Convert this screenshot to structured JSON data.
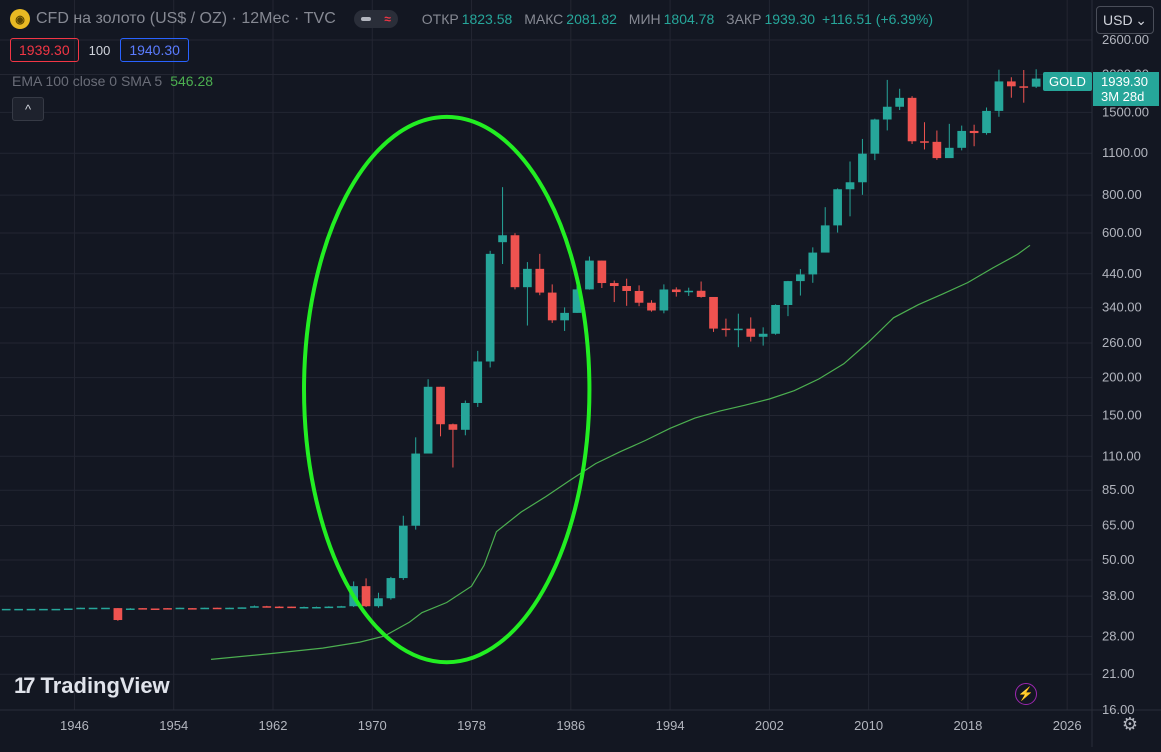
{
  "header": {
    "logo_glyph": "◉",
    "symbol_title": "CFD на золото (US$ / OZ) · 12Мес · TVC",
    "pill_icon": "wave-icon",
    "ohlc": [
      {
        "label": "ОТКР",
        "value": "1823.58"
      },
      {
        "label": "МАКС",
        "value": "2081.82"
      },
      {
        "label": "МИН",
        "value": "1804.78"
      },
      {
        "label": "ЗАКР",
        "value": "1939.30"
      },
      {
        "label": "",
        "value": "+116.51 (+6.39%)"
      }
    ]
  },
  "trade": {
    "sell": "1939.30",
    "spread": "100",
    "buy": "1940.30"
  },
  "indicator": {
    "label": "EMA 100 close 0 SMA 5",
    "value": "546.28"
  },
  "collapse_glyph": "^",
  "currency": {
    "label": "USD",
    "chevron": "⌄"
  },
  "branding": {
    "mark": "17",
    "name": "TradingView"
  },
  "bolt_glyph": "⚡",
  "gear_glyph": "⚙",
  "price_tag": {
    "symbol": "GOLD",
    "price": "1939.30",
    "countdown": "3M 28d"
  },
  "colors": {
    "up": "#26a69a",
    "down": "#ef5350",
    "ema": "#4caf50",
    "ellipse": "#22ee22",
    "grid": "#232632",
    "bg": "#131722"
  },
  "chart_data": {
    "type": "candlestick",
    "scale": "log",
    "ylim": [
      16,
      2600
    ],
    "xlim": [
      1940,
      2028
    ],
    "x_ticks": [
      "1946",
      "1954",
      "1962",
      "1970",
      "1978",
      "1986",
      "1994",
      "2002",
      "2010",
      "2018",
      "2026"
    ],
    "y_ticks": [
      "2600.00",
      "2000.00",
      "1500.00",
      "1100.00",
      "800.00",
      "600.00",
      "440.00",
      "340.00",
      "260.00",
      "200.00",
      "150.00",
      "110.00",
      "85.00",
      "65.00",
      "50.00",
      "38.00",
      "28.00",
      "21.00",
      "16.00"
    ],
    "candles": [
      {
        "year": 1940,
        "open": 34.5,
        "high": 34.5,
        "low": 34.5,
        "close": 34.5
      },
      {
        "year": 1941,
        "open": 34.5,
        "high": 34.5,
        "low": 34.5,
        "close": 34.5
      },
      {
        "year": 1942,
        "open": 34.5,
        "high": 34.5,
        "low": 34.5,
        "close": 34.5
      },
      {
        "year": 1943,
        "open": 34.5,
        "high": 34.5,
        "low": 34.5,
        "close": 34.5
      },
      {
        "year": 1944,
        "open": 34.5,
        "high": 34.5,
        "low": 34.5,
        "close": 34.5
      },
      {
        "year": 1945,
        "open": 34.6,
        "high": 34.6,
        "low": 34.6,
        "close": 34.6
      },
      {
        "year": 1946,
        "open": 34.6,
        "high": 34.8,
        "low": 34.6,
        "close": 34.8
      },
      {
        "year": 1947,
        "open": 34.8,
        "high": 34.8,
        "low": 34.8,
        "close": 34.8
      },
      {
        "year": 1948,
        "open": 34.8,
        "high": 34.8,
        "low": 34.8,
        "close": 34.8
      },
      {
        "year": 1949,
        "open": 34.7,
        "high": 34.7,
        "low": 31.5,
        "close": 31.7
      },
      {
        "year": 1950,
        "open": 34.6,
        "high": 34.7,
        "low": 34.5,
        "close": 34.6
      },
      {
        "year": 1951,
        "open": 34.7,
        "high": 34.7,
        "low": 34.5,
        "close": 34.6
      },
      {
        "year": 1952,
        "open": 34.6,
        "high": 34.6,
        "low": 34.5,
        "close": 34.5
      },
      {
        "year": 1953,
        "open": 34.7,
        "high": 34.7,
        "low": 34.5,
        "close": 34.6
      },
      {
        "year": 1954,
        "open": 34.6,
        "high": 34.8,
        "low": 34.6,
        "close": 34.8
      },
      {
        "year": 1955,
        "open": 34.7,
        "high": 34.7,
        "low": 34.6,
        "close": 34.6
      },
      {
        "year": 1956,
        "open": 34.7,
        "high": 34.8,
        "low": 34.7,
        "close": 34.8
      },
      {
        "year": 1957,
        "open": 34.8,
        "high": 34.8,
        "low": 34.7,
        "close": 34.7
      },
      {
        "year": 1958,
        "open": 34.7,
        "high": 34.8,
        "low": 34.7,
        "close": 34.8
      },
      {
        "year": 1959,
        "open": 34.8,
        "high": 34.9,
        "low": 34.8,
        "close": 34.9
      },
      {
        "year": 1960,
        "open": 34.9,
        "high": 35.4,
        "low": 34.9,
        "close": 35.2
      },
      {
        "year": 1961,
        "open": 35.2,
        "high": 35.3,
        "low": 34.9,
        "close": 35.0
      },
      {
        "year": 1962,
        "open": 35.1,
        "high": 35.2,
        "low": 34.9,
        "close": 35.0
      },
      {
        "year": 1963,
        "open": 35.1,
        "high": 35.1,
        "low": 34.8,
        "close": 34.9
      },
      {
        "year": 1964,
        "open": 35.0,
        "high": 35.1,
        "low": 34.9,
        "close": 35.0
      },
      {
        "year": 1965,
        "open": 35.0,
        "high": 35.1,
        "low": 34.9,
        "close": 35.0
      },
      {
        "year": 1966,
        "open": 35.0,
        "high": 35.2,
        "low": 35.0,
        "close": 35.1
      },
      {
        "year": 1967,
        "open": 35.1,
        "high": 35.3,
        "low": 35.0,
        "close": 35.2
      },
      {
        "year": 1968,
        "open": 35.2,
        "high": 42.5,
        "low": 35.0,
        "close": 41.0
      },
      {
        "year": 1969,
        "open": 41.0,
        "high": 43.5,
        "low": 35.0,
        "close": 35.2
      },
      {
        "year": 1970,
        "open": 35.2,
        "high": 39.0,
        "low": 34.8,
        "close": 37.4
      },
      {
        "year": 1971,
        "open": 37.4,
        "high": 44.0,
        "low": 37.0,
        "close": 43.6
      },
      {
        "year": 1972,
        "open": 43.6,
        "high": 70.0,
        "low": 43.0,
        "close": 64.9
      },
      {
        "year": 1973,
        "open": 64.9,
        "high": 127.0,
        "low": 63.0,
        "close": 112.3
      },
      {
        "year": 1974,
        "open": 112.3,
        "high": 197.5,
        "low": 118.0,
        "close": 186.5
      },
      {
        "year": 1975,
        "open": 186.5,
        "high": 186.5,
        "low": 128.0,
        "close": 140.3
      },
      {
        "year": 1976,
        "open": 140.3,
        "high": 141.0,
        "low": 101.0,
        "close": 134.5
      },
      {
        "year": 1977,
        "open": 134.5,
        "high": 168.0,
        "low": 129.0,
        "close": 164.9
      },
      {
        "year": 1978,
        "open": 164.9,
        "high": 245.0,
        "low": 160.0,
        "close": 226.0
      },
      {
        "year": 1979,
        "open": 226.0,
        "high": 524.0,
        "low": 216.0,
        "close": 512.0
      },
      {
        "year": 1980,
        "open": 559.5,
        "high": 850.0,
        "low": 474.0,
        "close": 589.8
      },
      {
        "year": 1981,
        "open": 589.8,
        "high": 599.0,
        "low": 391.0,
        "close": 397.5
      },
      {
        "year": 1982,
        "open": 397.5,
        "high": 481.0,
        "low": 297.0,
        "close": 456.9
      },
      {
        "year": 1983,
        "open": 456.9,
        "high": 512.0,
        "low": 374.0,
        "close": 381.5
      },
      {
        "year": 1984,
        "open": 381.5,
        "high": 406.0,
        "low": 303.0,
        "close": 309.0
      },
      {
        "year": 1985,
        "open": 309.0,
        "high": 341.0,
        "low": 285.0,
        "close": 327.0
      },
      {
        "year": 1986,
        "open": 327.0,
        "high": 442.0,
        "low": 327.0,
        "close": 390.9
      },
      {
        "year": 1987,
        "open": 390.9,
        "high": 502.0,
        "low": 390.0,
        "close": 486.5
      },
      {
        "year": 1988,
        "open": 486.5,
        "high": 486.5,
        "low": 395.0,
        "close": 410.2
      },
      {
        "year": 1989,
        "open": 410.2,
        "high": 418.0,
        "low": 355.0,
        "close": 401.0
      },
      {
        "year": 1990,
        "open": 401.0,
        "high": 424.0,
        "low": 345.0,
        "close": 386.2
      },
      {
        "year": 1991,
        "open": 386.2,
        "high": 403.0,
        "low": 344.0,
        "close": 353.2
      },
      {
        "year": 1992,
        "open": 353.2,
        "high": 360.0,
        "low": 330.0,
        "close": 333.0
      },
      {
        "year": 1993,
        "open": 333.0,
        "high": 406.0,
        "low": 326.0,
        "close": 390.6
      },
      {
        "year": 1994,
        "open": 390.6,
        "high": 397.0,
        "low": 370.0,
        "close": 383.0
      },
      {
        "year": 1995,
        "open": 383.0,
        "high": 396.0,
        "low": 372.0,
        "close": 386.8
      },
      {
        "year": 1996,
        "open": 386.8,
        "high": 415.0,
        "low": 367.0,
        "close": 369.0
      },
      {
        "year": 1997,
        "open": 369.0,
        "high": 368.0,
        "low": 283.0,
        "close": 290.2
      },
      {
        "year": 1998,
        "open": 290.2,
        "high": 313.0,
        "low": 273.0,
        "close": 288.0
      },
      {
        "year": 1999,
        "open": 288.0,
        "high": 325.0,
        "low": 252.0,
        "close": 290.0
      },
      {
        "year": 2000,
        "open": 290.0,
        "high": 316.0,
        "low": 263.0,
        "close": 272.7
      },
      {
        "year": 2001,
        "open": 272.7,
        "high": 293.0,
        "low": 255.0,
        "close": 279.0
      },
      {
        "year": 2002,
        "open": 279.0,
        "high": 349.0,
        "low": 277.0,
        "close": 347.2
      },
      {
        "year": 2003,
        "open": 347.2,
        "high": 417.0,
        "low": 319.0,
        "close": 416.3
      },
      {
        "year": 2004,
        "open": 416.3,
        "high": 456.0,
        "low": 373.0,
        "close": 438.0
      },
      {
        "year": 2005,
        "open": 438.0,
        "high": 538.0,
        "low": 411.0,
        "close": 517.0
      },
      {
        "year": 2006,
        "open": 517.0,
        "high": 730.0,
        "low": 524.0,
        "close": 635.7
      },
      {
        "year": 2007,
        "open": 635.7,
        "high": 842.0,
        "low": 602.0,
        "close": 836.5
      },
      {
        "year": 2008,
        "open": 836.5,
        "high": 1033.0,
        "low": 681.0,
        "close": 882.1
      },
      {
        "year": 2009,
        "open": 882.1,
        "high": 1226.0,
        "low": 802.0,
        "close": 1096.2
      },
      {
        "year": 2010,
        "open": 1096.2,
        "high": 1430.0,
        "low": 1044.0,
        "close": 1421.1
      },
      {
        "year": 2011,
        "open": 1421.1,
        "high": 1920.0,
        "low": 1308.0,
        "close": 1565.7
      },
      {
        "year": 2012,
        "open": 1565.7,
        "high": 1795.0,
        "low": 1527.0,
        "close": 1675.4
      },
      {
        "year": 2013,
        "open": 1675.4,
        "high": 1697.0,
        "low": 1180.0,
        "close": 1204.5
      },
      {
        "year": 2014,
        "open": 1204.5,
        "high": 1392.0,
        "low": 1132.0,
        "close": 1199.3
      },
      {
        "year": 2015,
        "open": 1199.3,
        "high": 1307.0,
        "low": 1046.0,
        "close": 1060.0
      },
      {
        "year": 2016,
        "open": 1060.0,
        "high": 1375.0,
        "low": 1061.0,
        "close": 1146.0
      },
      {
        "year": 2017,
        "open": 1146.0,
        "high": 1357.0,
        "low": 1124.0,
        "close": 1303.0
      },
      {
        "year": 2018,
        "open": 1303.0,
        "high": 1366.0,
        "low": 1160.0,
        "close": 1282.0
      },
      {
        "year": 2019,
        "open": 1282.0,
        "high": 1557.0,
        "low": 1266.0,
        "close": 1517.0
      },
      {
        "year": 2020,
        "open": 1517.0,
        "high": 2075.0,
        "low": 1451.0,
        "close": 1898.0
      },
      {
        "year": 2021,
        "open": 1898.0,
        "high": 1959.0,
        "low": 1677.0,
        "close": 1829.0
      },
      {
        "year": 2022,
        "open": 1829.0,
        "high": 2070.0,
        "low": 1615.0,
        "close": 1823.6
      },
      {
        "year": 2023,
        "open": 1823.6,
        "high": 2081.8,
        "low": 1804.8,
        "close": 1939.3
      }
    ],
    "ema": [
      [
        1957,
        23.5
      ],
      [
        1962,
        24.6
      ],
      [
        1966,
        25.6
      ],
      [
        1969,
        26.8
      ],
      [
        1971,
        28.1
      ],
      [
        1973,
        31.2
      ],
      [
        1974,
        33.5
      ],
      [
        1976,
        36.2
      ],
      [
        1978,
        41.0
      ],
      [
        1979,
        48.0
      ],
      [
        1980,
        62.0
      ],
      [
        1982,
        72.0
      ],
      [
        1984,
        81.0
      ],
      [
        1986,
        92.0
      ],
      [
        1988,
        104.0
      ],
      [
        1990,
        114.0
      ],
      [
        1992,
        124.0
      ],
      [
        1994,
        136.0
      ],
      [
        1996,
        147.0
      ],
      [
        1998,
        155.0
      ],
      [
        2000,
        162.0
      ],
      [
        2002,
        170.0
      ],
      [
        2004,
        181.0
      ],
      [
        2006,
        198.0
      ],
      [
        2008,
        222.0
      ],
      [
        2010,
        262.0
      ],
      [
        2012,
        315.0
      ],
      [
        2014,
        348.0
      ],
      [
        2016,
        378.0
      ],
      [
        2018,
        412.0
      ],
      [
        2020,
        460.0
      ],
      [
        2022,
        510.0
      ],
      [
        2023,
        546.28
      ]
    ],
    "annotation": {
      "shape": "ellipse",
      "x_range": [
        1964.5,
        1987.5
      ],
      "y_range": [
        23,
        1450
      ]
    }
  }
}
